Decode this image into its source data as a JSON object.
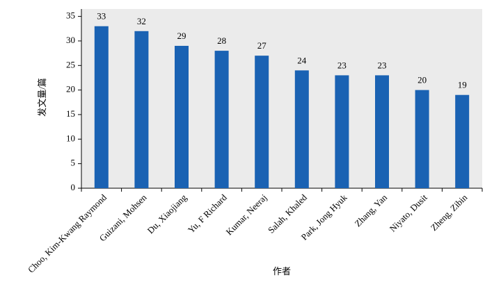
{
  "chart_data": {
    "type": "bar",
    "categories": [
      "Choo, Kim-Kwang Raymond",
      "Guizani, Mohsen",
      "Du, Xiaojiang",
      "Yu, F Richard",
      "Kumar, Neeraj",
      "Salah, Khaled",
      "Park, Jong Hyuk",
      "Zhang, Yan",
      "Niyato, Dusit",
      "Zheng, Zibin"
    ],
    "values": [
      33,
      32,
      29,
      28,
      27,
      24,
      23,
      23,
      20,
      19
    ],
    "color": "#1a62b3",
    "y_label": "发文量/篇",
    "x_label": "作者",
    "ylim": [
      0,
      36.5
    ],
    "yticks": [
      0,
      5,
      10,
      15,
      20,
      25,
      30,
      35
    ],
    "grid": false
  }
}
